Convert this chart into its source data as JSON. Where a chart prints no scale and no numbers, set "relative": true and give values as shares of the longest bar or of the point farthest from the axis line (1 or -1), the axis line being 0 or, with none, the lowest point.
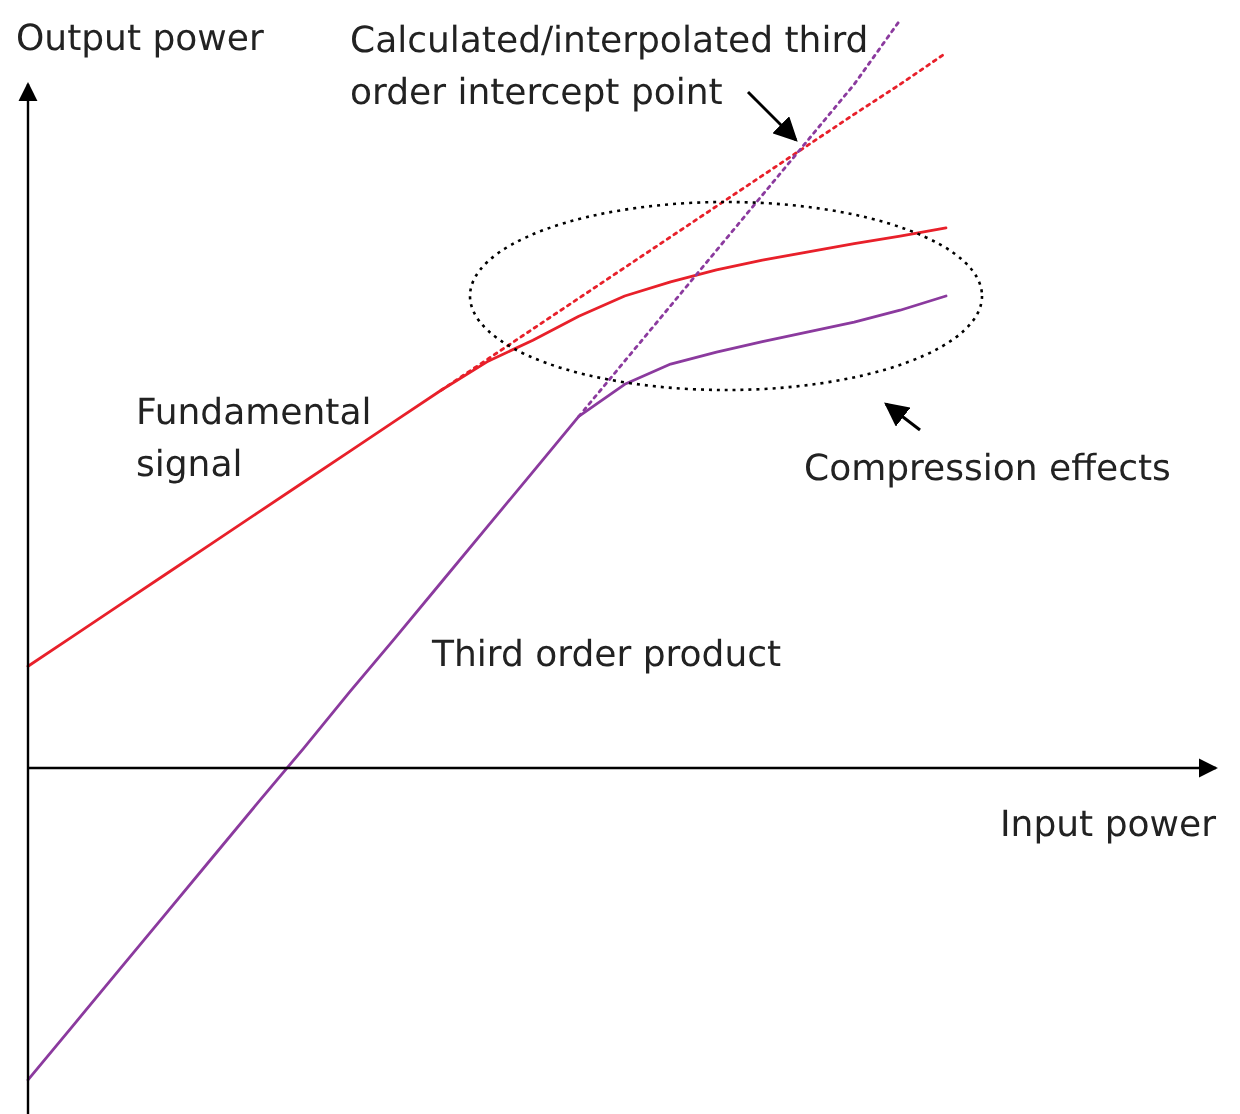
{
  "chart_data": {
    "type": "line",
    "relative": true,
    "xlabel": "Input power",
    "ylabel": "Output power",
    "categories": [
      null,
      null,
      null,
      null,
      null,
      null,
      null,
      null,
      null,
      null,
      null,
      null,
      null,
      null,
      null,
      null,
      null,
      null,
      null,
      null,
      null
    ],
    "series": [
      {
        "name": "Fundamental signal",
        "color": "#e8202a",
        "line_style": "solid",
        "values": [
          0.136,
          0.177,
          0.218,
          0.259,
          0.3,
          0.341,
          0.382,
          0.423,
          0.464,
          0.505,
          0.543,
          0.572,
          0.604,
          0.631,
          0.65,
          0.666,
          0.679,
          0.69,
          0.701,
          0.711,
          0.722
        ]
      },
      {
        "color": "#e8202a",
        "line_style": "dotted",
        "values": [
          null,
          null,
          null,
          null,
          null,
          null,
          null,
          null,
          null,
          0.505,
          0.546,
          0.587,
          0.628,
          0.669,
          0.71,
          0.751,
          0.792,
          0.833,
          0.874,
          0.914,
          0.956
        ]
      },
      {
        "name": "Third order product",
        "color": "#8b3a9e",
        "line_style": "solid",
        "values": [
          -0.417,
          -0.343,
          -0.269,
          -0.195,
          -0.121,
          -0.047,
          0.026,
          0.101,
          0.174,
          0.248,
          0.322,
          0.396,
          0.47,
          0.513,
          0.54,
          0.556,
          0.57,
          0.583,
          0.596,
          0.612,
          0.631
        ]
      },
      {
        "color": "#8b3a9e",
        "line_style": "dotted",
        "values": [
          null,
          null,
          null,
          null,
          null,
          null,
          null,
          null,
          null,
          null,
          null,
          null,
          0.47,
          0.544,
          0.618,
          0.692,
          0.766,
          0.84,
          0.914,
          1.0,
          null
        ]
      }
    ],
    "annotations": [
      "Calculated/interpolated third order intercept point",
      "Compression effects"
    ]
  }
}
